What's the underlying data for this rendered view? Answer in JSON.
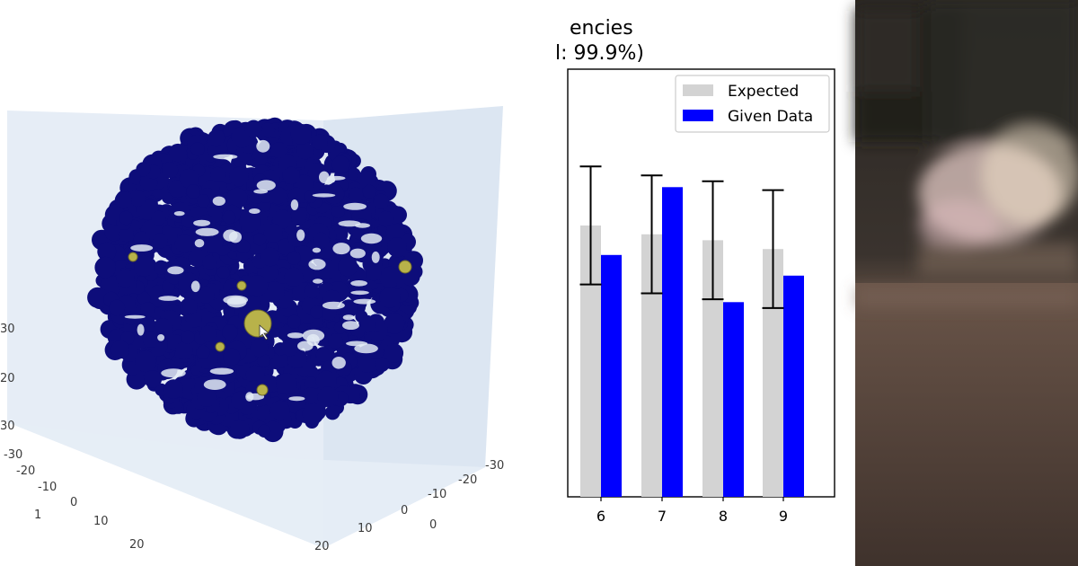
{
  "plot3d": {
    "axis_ticks_left": [
      "30",
      "20",
      "30"
    ],
    "axis_ticks_x": [
      "-30",
      "-20",
      "-10",
      "0",
      "1",
      "10",
      "20"
    ],
    "axis_ticks_y": [
      "-30",
      "-20",
      "-10",
      "0",
      "10",
      "0",
      "20"
    ],
    "colors": {
      "cloud": "#0d0d7a",
      "highlight": "#b8b24a",
      "pane": "#e3ebf5"
    }
  },
  "chart_data": {
    "type": "bar",
    "title_fragments": [
      "encies",
      "l: 99.9%)"
    ],
    "categories": [
      "6",
      "7",
      "8",
      "9"
    ],
    "series": [
      {
        "name": "Expected",
        "values": [
          0.92,
          0.89,
          0.87,
          0.84
        ],
        "err": [
          0.2,
          0.2,
          0.2,
          0.2
        ],
        "color": "#d3d3d3"
      },
      {
        "name": "Given Data",
        "values": [
          0.82,
          1.05,
          0.66,
          0.75
        ],
        "color": "#0000ff"
      }
    ],
    "ylim": [
      0,
      1.45
    ]
  },
  "photo": {
    "colors": {
      "dark": "#2f2a26",
      "table": "#5b4a41",
      "flower": "#e3c9c4"
    }
  }
}
